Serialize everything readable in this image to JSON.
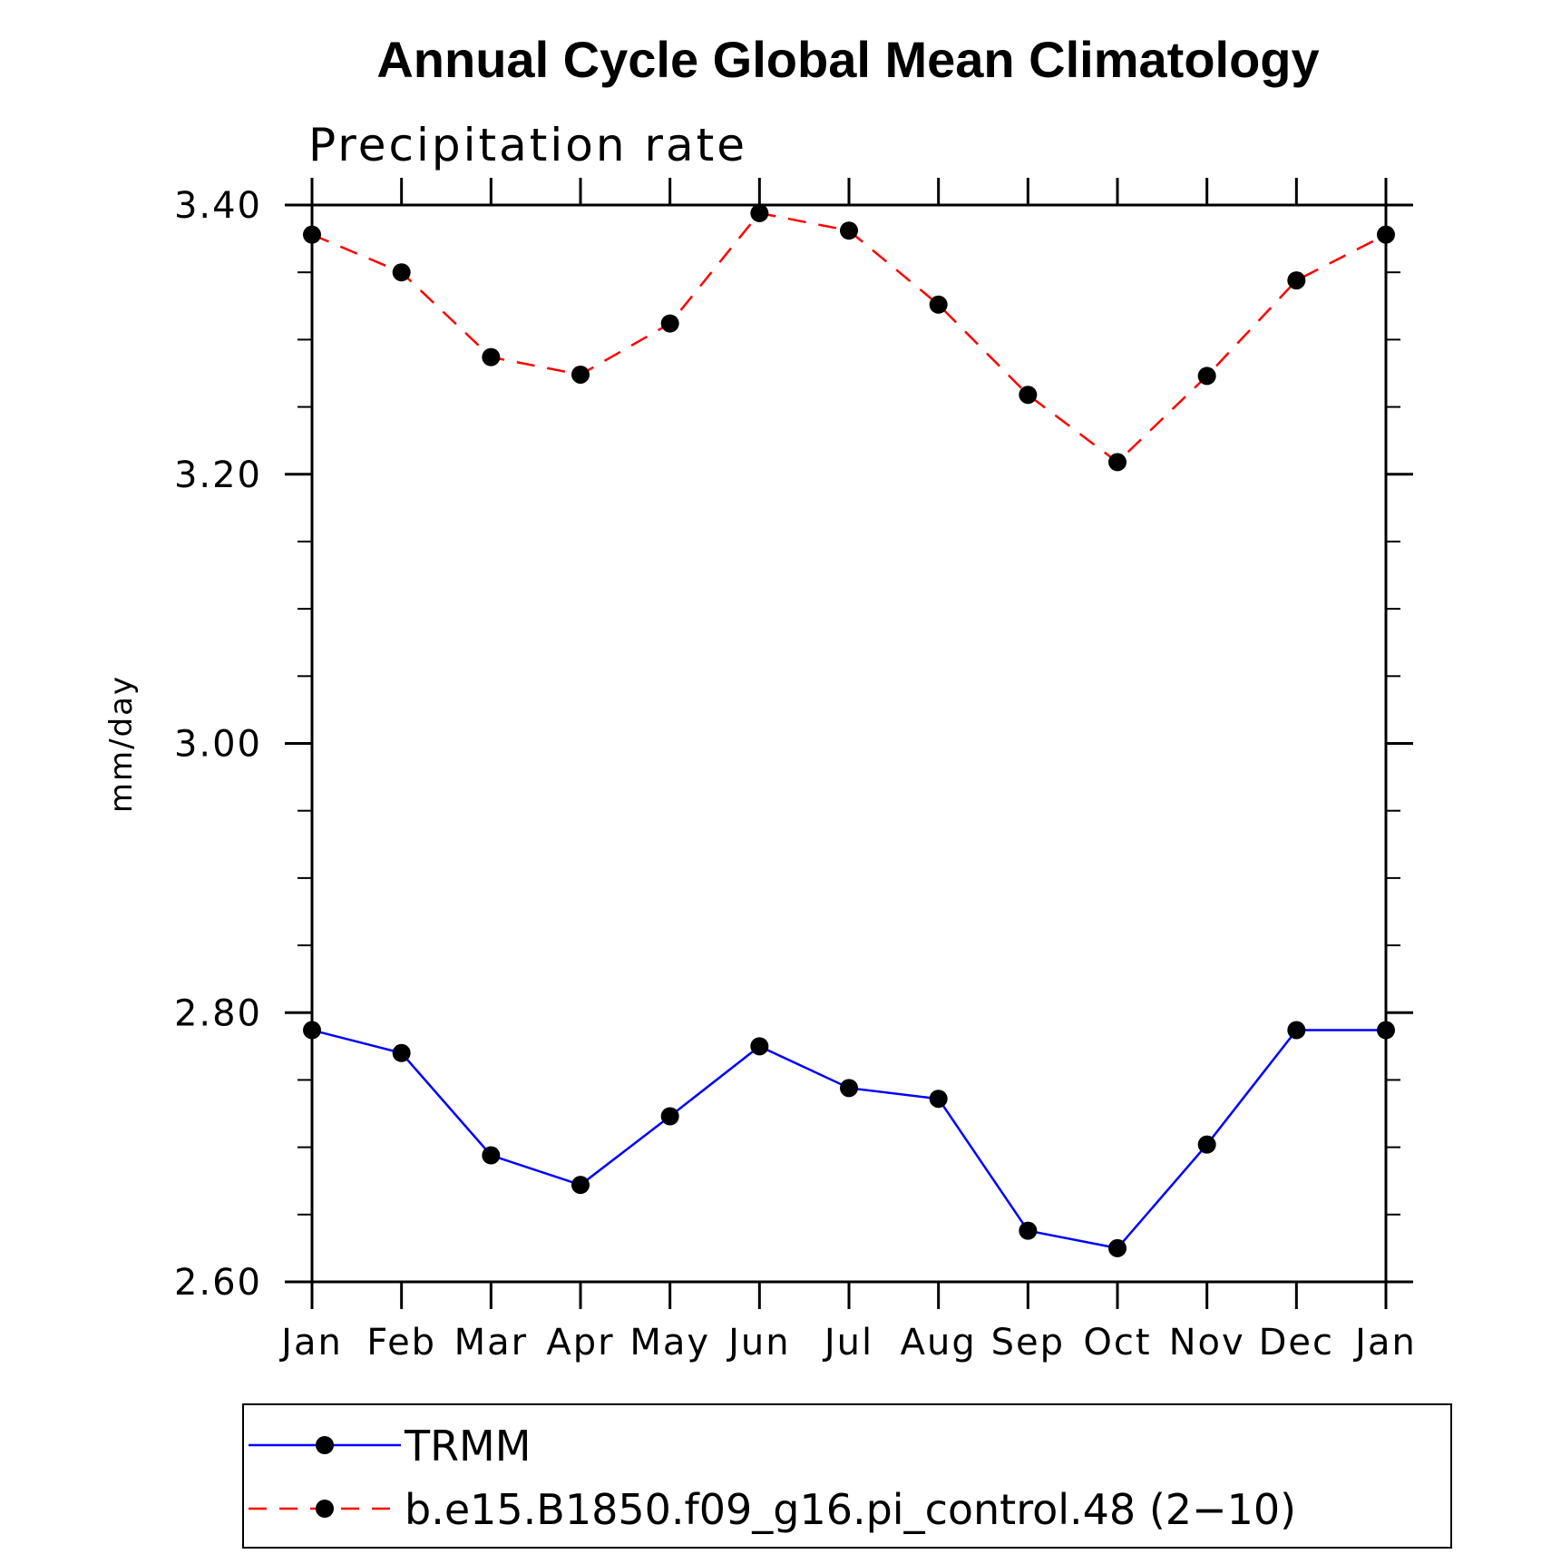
{
  "chart_data": {
    "type": "line",
    "title": "Annual Cycle Global Mean Climatology",
    "subtitle": "Precipitation rate",
    "xlabel": "",
    "ylabel": "mm/day",
    "categories": [
      "Jan",
      "Feb",
      "Mar",
      "Apr",
      "May",
      "Jun",
      "Jul",
      "Aug",
      "Sep",
      "Oct",
      "Nov",
      "Dec",
      "Jan"
    ],
    "ylim": [
      2.6,
      3.4
    ],
    "yticks": [
      2.6,
      2.8,
      3.0,
      3.2,
      3.4
    ],
    "ytick_labels": [
      "2.60",
      "2.80",
      "3.00",
      "3.20",
      "3.40"
    ],
    "y_minor_step": 0.05,
    "legend_position": "bottom",
    "series": [
      {
        "name": "TRMM",
        "color": "#0000ff",
        "dash": "solid",
        "values": [
          2.787,
          2.77,
          2.694,
          2.672,
          2.723,
          2.775,
          2.744,
          2.736,
          2.638,
          2.625,
          2.702,
          2.787,
          2.787
        ]
      },
      {
        "name": "b.e15.B1850.f09_g16.pi_control.48 (2−10)",
        "color": "#ff0000",
        "dash": "dashed",
        "values": [
          3.378,
          3.35,
          3.287,
          3.274,
          3.312,
          3.394,
          3.381,
          3.326,
          3.259,
          3.209,
          3.273,
          3.344,
          3.378
        ]
      }
    ]
  }
}
